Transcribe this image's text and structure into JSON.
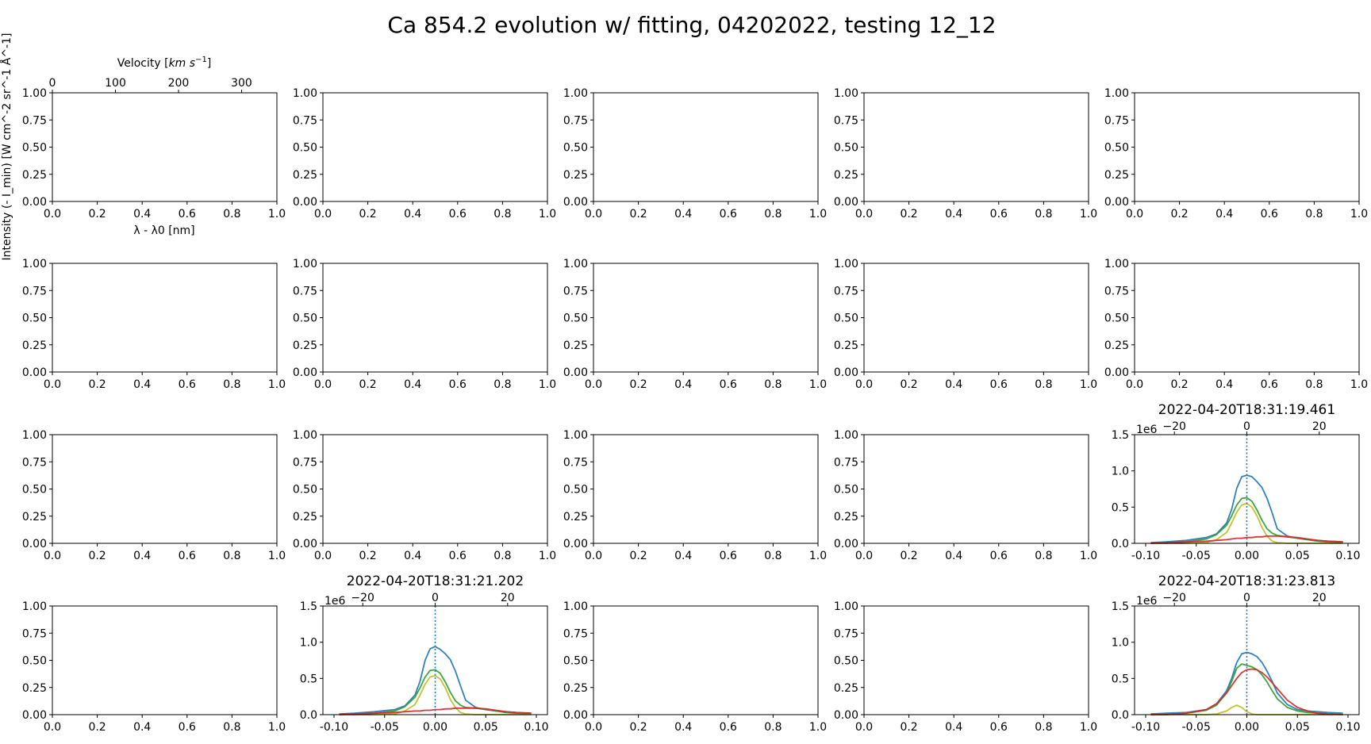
{
  "figure": {
    "title": "Ca 854.2 evolution w/ fitting, 04202022, testing 12_12",
    "ylabel": "Intensity (- I_min) [W cm^-2 sr^-1 Å^-1]",
    "xlabel": "λ - λ0 [nm]",
    "top_xlabel": "Velocity [km s^-1]"
  },
  "empty_axes": {
    "x_ticks": [
      "0.0",
      "0.2",
      "0.4",
      "0.6",
      "0.8",
      "1.0"
    ],
    "y_ticks": [
      "0.00",
      "0.25",
      "0.50",
      "0.75",
      "1.00"
    ],
    "velocity_ticks": [
      "0",
      "100",
      "200",
      "300"
    ]
  },
  "chart_data": [
    {
      "type": "line",
      "grid_row": 3,
      "grid_col": 5,
      "title": "2022-04-20T18:31:19.461",
      "xlim": [
        -0.1,
        0.1
      ],
      "ylim": [
        0,
        1.5
      ],
      "y_scale_label": "1e6",
      "x_ticks": [
        "-0.10",
        "-0.05",
        "0.00",
        "0.05",
        "0.10"
      ],
      "y_ticks": [
        "0.0",
        "0.5",
        "1.0",
        "1.5"
      ],
      "top_ticks": [
        "−20",
        "0",
        "20"
      ],
      "vline_x": 0.0,
      "x": [
        -0.095,
        -0.08,
        -0.06,
        -0.04,
        -0.03,
        -0.02,
        -0.015,
        -0.01,
        -0.005,
        0.0,
        0.005,
        0.01,
        0.015,
        0.02,
        0.025,
        0.03,
        0.04,
        0.05,
        0.06,
        0.07,
        0.08,
        0.095
      ],
      "series": [
        {
          "color": "#1f77b4",
          "values": [
            0.01,
            0.02,
            0.04,
            0.08,
            0.13,
            0.28,
            0.47,
            0.76,
            0.92,
            0.94,
            0.92,
            0.85,
            0.77,
            0.62,
            0.42,
            0.2,
            0.1,
            0.07,
            0.05,
            0.04,
            0.03,
            0.02
          ]
        },
        {
          "color": "#2ca02c",
          "values": [
            0.0,
            0.0,
            0.02,
            0.06,
            0.12,
            0.25,
            0.38,
            0.53,
            0.62,
            0.63,
            0.58,
            0.46,
            0.32,
            0.2,
            0.14,
            0.11,
            0.09,
            0.07,
            0.05,
            0.03,
            0.02,
            0.01
          ]
        },
        {
          "color": "#bcbd22",
          "values": [
            0.0,
            0.0,
            0.0,
            0.01,
            0.05,
            0.15,
            0.28,
            0.43,
            0.53,
            0.55,
            0.5,
            0.38,
            0.22,
            0.1,
            0.03,
            0.01,
            0.0,
            0.0,
            0.0,
            0.0,
            0.0,
            0.0
          ]
        },
        {
          "color": "#d62728",
          "values": [
            0.0,
            0.01,
            0.02,
            0.03,
            0.04,
            0.05,
            0.06,
            0.07,
            0.07,
            0.08,
            0.08,
            0.09,
            0.09,
            0.1,
            0.1,
            0.1,
            0.09,
            0.08,
            0.06,
            0.04,
            0.03,
            0.02
          ]
        }
      ]
    },
    {
      "type": "line",
      "grid_row": 4,
      "grid_col": 2,
      "title": "2022-04-20T18:31:21.202",
      "xlim": [
        -0.1,
        0.1
      ],
      "ylim": [
        0,
        1.5
      ],
      "y_scale_label": "1e6",
      "x_ticks": [
        "-0.10",
        "-0.05",
        "0.00",
        "0.05",
        "0.10"
      ],
      "y_ticks": [
        "0.0",
        "0.5",
        "1.0",
        "1.5"
      ],
      "top_ticks": [
        "−20",
        "0",
        "20"
      ],
      "vline_x": 0.0,
      "x": [
        -0.095,
        -0.08,
        -0.06,
        -0.04,
        -0.03,
        -0.02,
        -0.015,
        -0.01,
        -0.005,
        0.0,
        0.005,
        0.01,
        0.015,
        0.02,
        0.025,
        0.03,
        0.04,
        0.05,
        0.06,
        0.07,
        0.08,
        0.095
      ],
      "series": [
        {
          "color": "#1f77b4",
          "values": [
            0.01,
            0.02,
            0.04,
            0.07,
            0.12,
            0.27,
            0.46,
            0.75,
            0.91,
            0.94,
            0.9,
            0.84,
            0.76,
            0.6,
            0.4,
            0.2,
            0.1,
            0.07,
            0.05,
            0.04,
            0.03,
            0.02
          ]
        },
        {
          "color": "#2ca02c",
          "values": [
            0.0,
            0.0,
            0.02,
            0.05,
            0.11,
            0.24,
            0.37,
            0.52,
            0.61,
            0.62,
            0.57,
            0.45,
            0.31,
            0.19,
            0.13,
            0.1,
            0.09,
            0.07,
            0.05,
            0.03,
            0.02,
            0.01
          ]
        },
        {
          "color": "#bcbd22",
          "values": [
            0.0,
            0.0,
            0.0,
            0.01,
            0.05,
            0.14,
            0.27,
            0.42,
            0.52,
            0.54,
            0.49,
            0.37,
            0.21,
            0.1,
            0.03,
            0.01,
            0.0,
            0.0,
            0.0,
            0.0,
            0.0,
            0.0
          ]
        },
        {
          "color": "#d62728",
          "values": [
            0.0,
            0.01,
            0.02,
            0.03,
            0.04,
            0.05,
            0.05,
            0.06,
            0.06,
            0.07,
            0.07,
            0.08,
            0.08,
            0.09,
            0.09,
            0.09,
            0.09,
            0.08,
            0.06,
            0.04,
            0.03,
            0.02
          ]
        }
      ]
    },
    {
      "type": "line",
      "grid_row": 4,
      "grid_col": 5,
      "title": "2022-04-20T18:31:23.813",
      "xlim": [
        -0.1,
        0.1
      ],
      "ylim": [
        0,
        1.5
      ],
      "y_scale_label": "1e6",
      "x_ticks": [
        "-0.10",
        "-0.05",
        "0.00",
        "0.05",
        "0.10"
      ],
      "y_ticks": [
        "0.0",
        "0.5",
        "1.0",
        "1.5"
      ],
      "top_ticks": [
        "−20",
        "0",
        "20"
      ],
      "vline_x": 0.0,
      "x": [
        -0.095,
        -0.08,
        -0.06,
        -0.04,
        -0.03,
        -0.02,
        -0.015,
        -0.01,
        -0.005,
        0.0,
        0.005,
        0.01,
        0.015,
        0.02,
        0.025,
        0.03,
        0.04,
        0.05,
        0.06,
        0.07,
        0.08,
        0.095
      ],
      "series": [
        {
          "color": "#1f77b4",
          "values": [
            0.01,
            0.02,
            0.03,
            0.07,
            0.15,
            0.33,
            0.5,
            0.72,
            0.84,
            0.86,
            0.84,
            0.8,
            0.72,
            0.6,
            0.46,
            0.3,
            0.14,
            0.07,
            0.05,
            0.04,
            0.03,
            0.02
          ]
        },
        {
          "color": "#2ca02c",
          "values": [
            0.0,
            0.0,
            0.02,
            0.06,
            0.13,
            0.3,
            0.46,
            0.64,
            0.7,
            0.68,
            0.66,
            0.62,
            0.55,
            0.45,
            0.33,
            0.22,
            0.1,
            0.05,
            0.03,
            0.02,
            0.01,
            0.0
          ]
        },
        {
          "color": "#bcbd22",
          "values": [
            0.0,
            0.0,
            0.0,
            0.0,
            0.01,
            0.05,
            0.1,
            0.13,
            0.1,
            0.04,
            0.01,
            0.0,
            0.0,
            0.0,
            0.0,
            0.0,
            0.0,
            0.0,
            0.0,
            0.0,
            0.0,
            0.0
          ]
        },
        {
          "color": "#d62728",
          "values": [
            0.0,
            0.0,
            0.02,
            0.07,
            0.15,
            0.3,
            0.4,
            0.5,
            0.58,
            0.62,
            0.63,
            0.62,
            0.58,
            0.52,
            0.44,
            0.36,
            0.2,
            0.1,
            0.05,
            0.02,
            0.01,
            0.0
          ]
        }
      ]
    }
  ]
}
